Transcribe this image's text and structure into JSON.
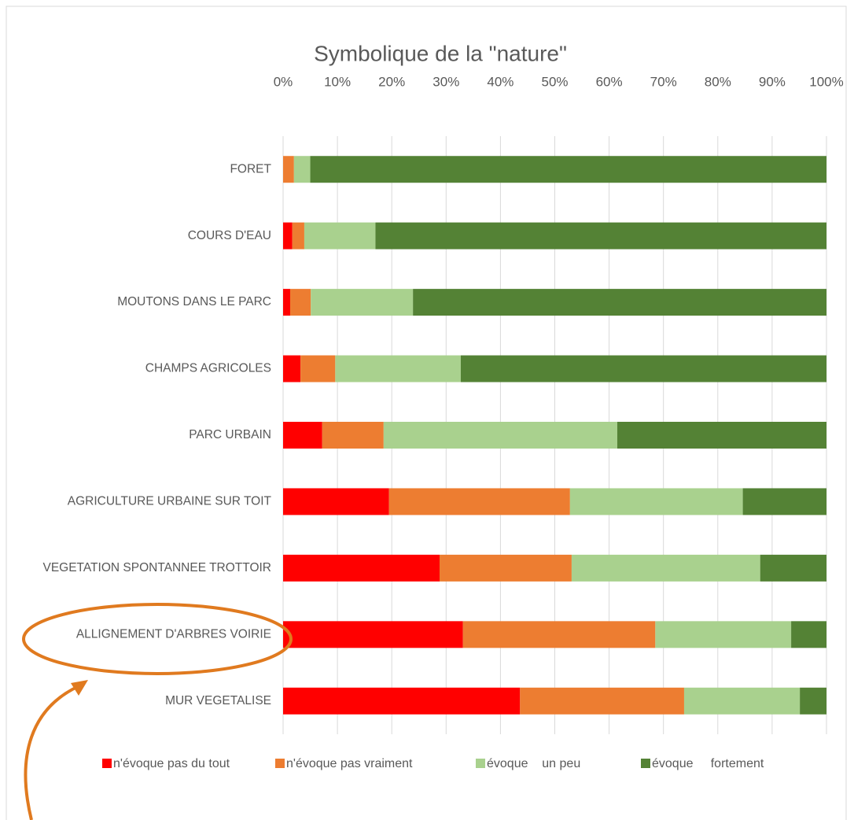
{
  "chart_data": {
    "type": "stacked-bar-horizontal",
    "title": "Symbolique de la \"nature\"",
    "categories": [
      "FORET",
      "COURS D'EAU",
      "MOUTONS DANS LE PARC",
      "CHAMPS AGRICOLES",
      "PARC URBAIN",
      "AGRICULTURE URBAINE SUR TOIT",
      "VEGETATION SPONTANNEE TROTTOIR",
      "ALLIGNEMENT D'ARBRES VOIRIE",
      "MUR VEGETALISE"
    ],
    "series": [
      {
        "name": "n'évoque pas du tout",
        "color": "#ff0000",
        "values": [
          0,
          1.7,
          1.3,
          3.2,
          7.2,
          19.5,
          28.8,
          33.1,
          43.6
        ]
      },
      {
        "name": "n'évoque pas vraiment",
        "color": "#ed7d31",
        "values": [
          2,
          2.2,
          3.8,
          6.4,
          11.3,
          33.3,
          24.3,
          35.4,
          30.2
        ]
      },
      {
        "name": "évoque    un peu",
        "color": "#a9d18e",
        "values": [
          3,
          13.1,
          18.8,
          23.1,
          43,
          31.8,
          34.7,
          25,
          21.3
        ]
      },
      {
        "name": "évoque     fortement",
        "color": "#548235",
        "values": [
          95,
          83,
          76.1,
          67.3,
          38.5,
          15.4,
          12.2,
          6.5,
          4.9
        ]
      }
    ],
    "xlim": [
      0,
      100
    ],
    "xticks": [
      {
        "value": 0,
        "label": "0%"
      },
      {
        "value": 10,
        "label": "10%"
      },
      {
        "value": 20,
        "label": "20%"
      },
      {
        "value": 30,
        "label": "30%"
      },
      {
        "value": 40,
        "label": "40%"
      },
      {
        "value": 50,
        "label": "50%"
      },
      {
        "value": 60,
        "label": "60%"
      },
      {
        "value": 70,
        "label": "70%"
      },
      {
        "value": 80,
        "label": "80%"
      },
      {
        "value": 90,
        "label": "90%"
      },
      {
        "value": 100,
        "label": "100%"
      }
    ],
    "grid": true,
    "legend": "bottom"
  }
}
